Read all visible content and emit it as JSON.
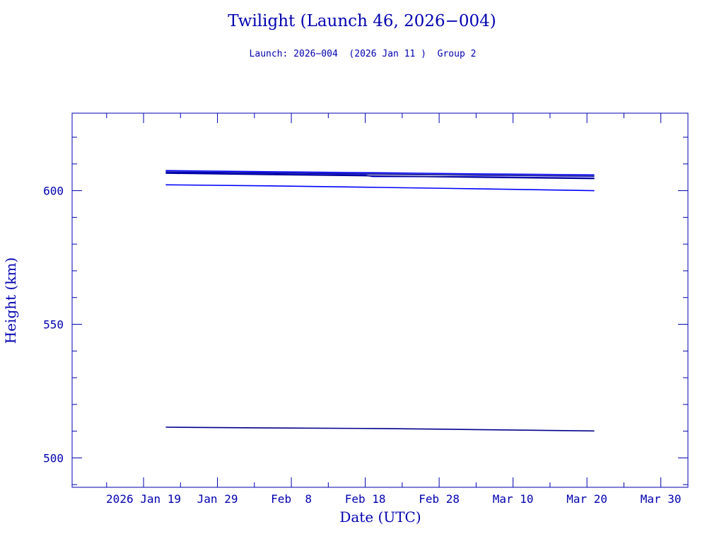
{
  "chart_data": {
    "type": "line",
    "title": "Twilight (Launch 46, 2026−004)",
    "subtitle": "Launch: 2026−004  (2026 Jan 11 )  Group 2",
    "xlabel": "Date (UTC)",
    "ylabel": "Height (km)",
    "xlim": [
      "2026-01-09T08:00",
      "2026-04-02T16:00"
    ],
    "ylim": [
      489,
      629
    ],
    "x_ticks": [
      "2026-01-19",
      "2026-01-29",
      "2026-02-08",
      "2026-02-18",
      "2026-02-28",
      "2026-03-10",
      "2026-03-20",
      "2026-03-30"
    ],
    "x_tick_labels": [
      "2026 Jan 19",
      "Jan 29",
      "Feb  8",
      "Feb 18",
      "Feb 28",
      "Mar 10",
      "Mar 20",
      "Mar 30"
    ],
    "y_ticks": [
      500,
      550,
      600
    ],
    "y_tick_labels": [
      "500",
      "550",
      "600"
    ],
    "grid": false,
    "colors": {
      "axis": "#0000b0",
      "series_a": "#0000ff",
      "series_b": "#00008b"
    },
    "series": [
      {
        "x": [
          "2026-01-22",
          "2026-02-05",
          "2026-02-20",
          "2026-03-05",
          "2026-03-21"
        ],
        "y": [
          607.5,
          607.1,
          606.7,
          606.3,
          605.9
        ]
      },
      {
        "x": [
          "2026-01-22",
          "2026-02-05",
          "2026-02-20",
          "2026-03-05",
          "2026-03-21"
        ],
        "y": [
          607.0,
          606.6,
          606.2,
          605.8,
          605.4
        ]
      },
      {
        "x": [
          "2026-01-22",
          "2026-02-05",
          "2026-02-18",
          "2026-02-19",
          "2026-03-05",
          "2026-03-21"
        ],
        "y": [
          606.7,
          606.2,
          605.8,
          605.3,
          605.2,
          604.7
        ]
      },
      {
        "x": [
          "2026-01-22",
          "2026-02-05",
          "2026-02-20",
          "2026-03-05",
          "2026-03-21"
        ],
        "y": [
          606.5,
          606.0,
          605.5,
          605.0,
          604.5
        ]
      },
      {
        "x": [
          "2026-01-22",
          "2026-02-05",
          "2026-02-20",
          "2026-03-05",
          "2026-03-21"
        ],
        "y": [
          602.2,
          601.8,
          601.2,
          600.7,
          600.0
        ]
      },
      {
        "x": [
          "2026-01-22",
          "2026-02-05",
          "2026-02-20",
          "2026-03-05",
          "2026-03-21"
        ],
        "y": [
          511.5,
          511.2,
          511.0,
          510.6,
          510.1
        ]
      }
    ]
  }
}
